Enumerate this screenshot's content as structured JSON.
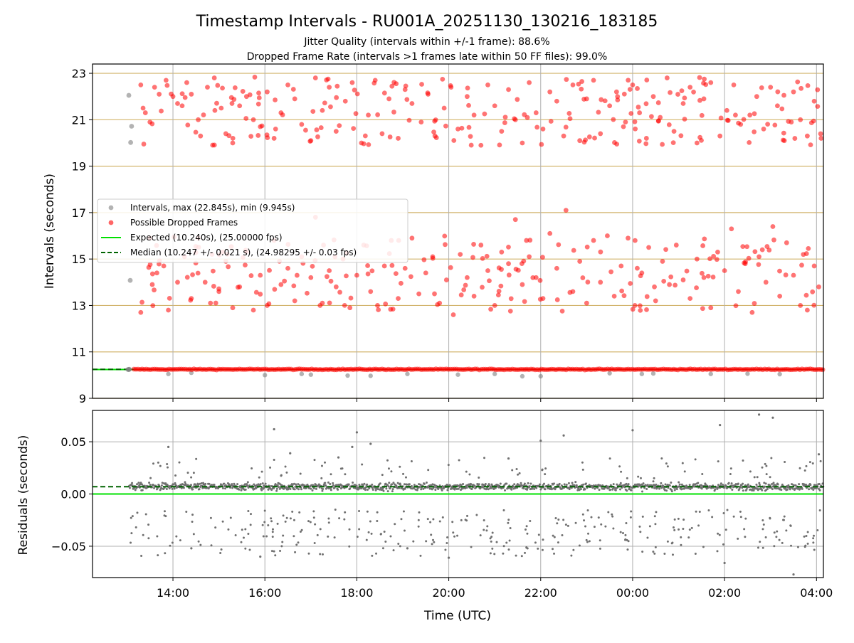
{
  "figure": {
    "title": "Timestamp Intervals - RU001A_20251130_130216_183185",
    "subtitle_line1": "Jitter Quality (intervals within +/-1 frame): 88.6%",
    "subtitle_line2": "Dropped Frame Rate (intervals >1 frames late within 50 FF files): 99.0%",
    "xlabel": "Time (UTC)"
  },
  "colors": {
    "intervals": "#808080",
    "dropped": "#ff0000",
    "expected": "#00e000",
    "median": "#006400",
    "hgrid_upper": "#d2b46c",
    "grid": "#b0b0b0",
    "residual_points": "#707070"
  },
  "chart_data": [
    {
      "type": "scatter",
      "panel": "intervals",
      "ylabel": "Intervals (seconds)",
      "x_range_hours": [
        12.25,
        28.15
      ],
      "ylim": [
        9,
        23.4
      ],
      "yticks": [
        9,
        11,
        13,
        15,
        17,
        19,
        21,
        23
      ],
      "ytick_labels": [
        "9",
        "11",
        "13",
        "15",
        "17",
        "19",
        "21",
        "23"
      ],
      "xticks_hours": [
        14,
        16,
        18,
        20,
        22,
        24,
        26,
        28
      ],
      "xtick_labels": [
        "14:00",
        "16:00",
        "18:00",
        "20:00",
        "22:00",
        "00:00",
        "02:00",
        "04:00"
      ],
      "grid": true,
      "legend_position": "center-left",
      "legend": [
        {
          "kind": "marker",
          "color_key": "intervals",
          "label": "Intervals, max (22.845s), min (9.945s)"
        },
        {
          "kind": "marker",
          "color_key": "dropped",
          "label": "Possible Dropped Frames"
        },
        {
          "kind": "line",
          "style": "solid",
          "color_key": "expected",
          "label": "Expected (10.240s), (25.00000 fps)"
        },
        {
          "kind": "line",
          "style": "dashed",
          "color_key": "median",
          "label": "Median (10.247 +/- 0.021 s), (24.98295 +/- 0.03 fps)"
        }
      ],
      "expected": 10.24,
      "median": 10.247,
      "data_start_hour": 13.04,
      "data_end_hour": 28.15,
      "interval_extremes": {
        "max": 22.845,
        "min": 9.945
      },
      "cluster_bands": [
        {
          "name": "baseline",
          "y_min": 10.2,
          "y_max": 10.3
        },
        {
          "name": "middle",
          "y_min": 12.6,
          "y_max": 17.1
        },
        {
          "name": "upper",
          "y_min": 19.8,
          "y_max": 22.85
        }
      ],
      "series_points": {
        "intervals_early": [
          [
            13.04,
            22.05
          ],
          [
            13.1,
            20.72
          ],
          [
            13.08,
            20.02
          ],
          [
            13.07,
            14.08
          ],
          [
            13.02,
            10.24
          ],
          [
            13.05,
            10.25
          ]
        ],
        "intervals_low_outliers": [
          [
            13.9,
            10.05
          ],
          [
            14.4,
            10.1
          ],
          [
            16.0,
            10.0
          ],
          [
            16.8,
            10.05
          ],
          [
            17.0,
            10.02
          ],
          [
            17.8,
            9.98
          ],
          [
            18.3,
            9.97
          ],
          [
            19.1,
            10.05
          ],
          [
            20.2,
            10.02
          ],
          [
            21.0,
            10.05
          ],
          [
            21.6,
            9.95
          ],
          [
            22.0,
            9.95
          ],
          [
            23.5,
            10.08
          ],
          [
            24.2,
            10.05
          ],
          [
            24.45,
            10.07
          ],
          [
            25.7,
            10.05
          ],
          [
            26.5,
            10.06
          ],
          [
            27.2,
            10.04
          ]
        ],
        "dropped_upper": [
          [
            13.3,
            22.5
          ],
          [
            13.35,
            21.5
          ],
          [
            13.4,
            21.3
          ],
          [
            13.5,
            20.9
          ],
          [
            13.6,
            22.4
          ],
          [
            13.7,
            22.1
          ],
          [
            13.85,
            22.7
          ],
          [
            14.0,
            22.0
          ],
          [
            14.1,
            21.7
          ],
          [
            14.2,
            21.6
          ],
          [
            14.3,
            22.6
          ],
          [
            14.4,
            22.1
          ],
          [
            14.55,
            21.0
          ],
          [
            14.6,
            20.3
          ],
          [
            14.75,
            22.4
          ],
          [
            14.9,
            22.8
          ],
          [
            15.05,
            21.5
          ],
          [
            15.15,
            20.4
          ],
          [
            15.3,
            20.0
          ],
          [
            15.45,
            21.6
          ],
          [
            15.6,
            22.0
          ],
          [
            15.75,
            21.0
          ],
          [
            15.9,
            20.7
          ],
          [
            16.05,
            22.2
          ],
          [
            16.2,
            20.2
          ],
          [
            16.35,
            21.3
          ],
          [
            16.5,
            22.5
          ],
          [
            16.65,
            21.9
          ],
          [
            16.8,
            20.8
          ],
          [
            17.0,
            20.1
          ],
          [
            17.1,
            22.8
          ],
          [
            17.25,
            21.4
          ],
          [
            17.4,
            22.4
          ],
          [
            17.55,
            20.5
          ],
          [
            17.75,
            21.8
          ],
          [
            17.9,
            22.6
          ],
          [
            18.1,
            20.0
          ],
          [
            18.25,
            21.2
          ],
          [
            18.4,
            22.7
          ],
          [
            18.55,
            20.4
          ],
          [
            18.7,
            21.9
          ],
          [
            18.9,
            20.2
          ],
          [
            19.05,
            22.3
          ],
          [
            19.2,
            21.7
          ],
          [
            19.4,
            20.9
          ],
          [
            19.55,
            22.1
          ],
          [
            19.7,
            20.3
          ],
          [
            19.9,
            21.5
          ],
          [
            20.05,
            22.4
          ],
          [
            20.2,
            20.6
          ],
          [
            20.4,
            22.0
          ],
          [
            20.55,
            21.2
          ],
          [
            20.7,
            19.9
          ],
          [
            20.85,
            22.5
          ],
          [
            21.0,
            21.6
          ],
          [
            21.15,
            20.5
          ],
          [
            21.3,
            22.3
          ],
          [
            21.45,
            21.0
          ],
          [
            21.6,
            20.0
          ],
          [
            21.75,
            22.6
          ],
          [
            21.9,
            21.3
          ],
          [
            22.05,
            20.6
          ],
          [
            22.2,
            22.2
          ],
          [
            22.35,
            21.8
          ],
          [
            22.5,
            20.3
          ],
          [
            22.7,
            22.5
          ],
          [
            22.85,
            20.1
          ],
          [
            23.0,
            21.9
          ],
          [
            23.15,
            22.7
          ],
          [
            23.3,
            20.4
          ],
          [
            23.5,
            21.6
          ],
          [
            23.65,
            22.2
          ],
          [
            23.8,
            20.7
          ],
          [
            24.0,
            22.5
          ],
          [
            24.15,
            21.3
          ],
          [
            24.3,
            20.2
          ],
          [
            24.45,
            22.0
          ],
          [
            24.6,
            21.1
          ],
          [
            24.75,
            22.8
          ],
          [
            24.9,
            20.5
          ],
          [
            25.1,
            21.7
          ],
          [
            25.25,
            22.4
          ],
          [
            25.4,
            20.0
          ],
          [
            25.55,
            21.9
          ],
          [
            25.7,
            22.6
          ],
          [
            25.9,
            20.3
          ],
          [
            26.05,
            21.4
          ],
          [
            26.2,
            22.5
          ],
          [
            26.35,
            20.8
          ],
          [
            26.55,
            21.2
          ],
          [
            26.7,
            22.0
          ],
          [
            26.85,
            20.6
          ],
          [
            27.0,
            22.4
          ],
          [
            27.15,
            21.6
          ],
          [
            27.3,
            20.1
          ],
          [
            27.5,
            22.2
          ],
          [
            27.65,
            21.0
          ],
          [
            27.8,
            20.3
          ],
          [
            27.95,
            21.8
          ],
          [
            28.1,
            20.2
          ]
        ],
        "dropped_middle": [
          [
            13.3,
            12.7
          ],
          [
            13.5,
            15.9
          ],
          [
            13.55,
            13.9
          ],
          [
            13.65,
            14.4
          ],
          [
            13.8,
            14.7
          ],
          [
            13.9,
            12.8
          ],
          [
            14.1,
            14.0
          ],
          [
            14.25,
            15.1
          ],
          [
            14.4,
            13.3
          ],
          [
            14.55,
            15.9
          ],
          [
            14.7,
            14.0
          ],
          [
            14.85,
            15.2
          ],
          [
            15.0,
            13.6
          ],
          [
            15.15,
            14.9
          ],
          [
            15.3,
            12.9
          ],
          [
            15.45,
            13.8
          ],
          [
            15.6,
            15.3
          ],
          [
            15.75,
            12.8
          ],
          [
            15.9,
            14.3
          ],
          [
            16.05,
            13.0
          ],
          [
            16.2,
            15.8
          ],
          [
            16.35,
            13.9
          ],
          [
            16.5,
            14.6
          ],
          [
            16.65,
            13.2
          ],
          [
            16.8,
            15.1
          ],
          [
            17.0,
            14.2
          ],
          [
            17.1,
            16.8
          ],
          [
            17.25,
            13.1
          ],
          [
            17.4,
            14.5
          ],
          [
            17.55,
            13.8
          ],
          [
            17.7,
            15.0
          ],
          [
            17.85,
            12.9
          ],
          [
            18.0,
            14.3
          ],
          [
            18.15,
            15.6
          ],
          [
            18.3,
            13.6
          ],
          [
            18.45,
            13.0
          ],
          [
            18.6,
            14.7
          ],
          [
            18.75,
            15.8
          ],
          [
            18.9,
            13.3
          ],
          [
            19.05,
            14.6
          ],
          [
            19.2,
            15.9
          ],
          [
            19.35,
            13.5
          ],
          [
            19.5,
            14.4
          ],
          [
            19.65,
            15.1
          ],
          [
            19.8,
            13.1
          ],
          [
            19.95,
            14.1
          ],
          [
            20.1,
            12.6
          ],
          [
            20.25,
            15.2
          ],
          [
            20.4,
            14.2
          ],
          [
            20.55,
            13.4
          ],
          [
            20.7,
            15.6
          ],
          [
            20.85,
            14.5
          ],
          [
            21.0,
            13.0
          ],
          [
            21.15,
            15.3
          ],
          [
            21.3,
            14.8
          ],
          [
            21.45,
            16.7
          ],
          [
            21.6,
            13.9
          ],
          [
            21.75,
            15.1
          ],
          [
            21.9,
            14.2
          ],
          [
            22.05,
            13.3
          ],
          [
            22.2,
            16.1
          ],
          [
            22.35,
            14.6
          ],
          [
            22.55,
            17.1
          ],
          [
            22.7,
            13.6
          ],
          [
            22.85,
            14.9
          ],
          [
            23.0,
            13.1
          ],
          [
            23.15,
            15.8
          ],
          [
            23.3,
            14.0
          ],
          [
            23.45,
            16.0
          ],
          [
            23.6,
            13.4
          ],
          [
            23.75,
            14.7
          ],
          [
            23.9,
            15.9
          ],
          [
            24.05,
            13.0
          ],
          [
            24.2,
            14.4
          ],
          [
            24.35,
            15.5
          ],
          [
            24.5,
            13.2
          ],
          [
            24.65,
            14.9
          ],
          [
            24.8,
            13.9
          ],
          [
            24.95,
            15.6
          ],
          [
            25.1,
            14.1
          ],
          [
            25.25,
            13.3
          ],
          [
            25.4,
            15.0
          ],
          [
            25.55,
            14.2
          ],
          [
            25.7,
            12.9
          ],
          [
            25.85,
            15.3
          ],
          [
            26.0,
            14.5
          ],
          [
            26.15,
            16.3
          ],
          [
            26.3,
            13.6
          ],
          [
            26.45,
            14.8
          ],
          [
            26.6,
            12.7
          ],
          [
            26.75,
            15.1
          ],
          [
            26.9,
            14.0
          ],
          [
            27.05,
            16.4
          ],
          [
            27.2,
            13.4
          ],
          [
            27.35,
            15.7
          ],
          [
            27.5,
            14.3
          ],
          [
            27.65,
            13.0
          ],
          [
            27.8,
            12.8
          ],
          [
            27.95,
            14.7
          ],
          [
            28.05,
            13.8
          ]
        ]
      }
    },
    {
      "type": "scatter",
      "panel": "residuals",
      "ylabel": "Residuals (seconds)",
      "x_range_hours": [
        12.25,
        28.15
      ],
      "ylim": [
        -0.08,
        0.08
      ],
      "yticks": [
        -0.05,
        0.0,
        0.05
      ],
      "ytick_labels": [
        "−0.05",
        "0.00",
        "0.05"
      ],
      "xticks_hours": [
        14,
        16,
        18,
        20,
        22,
        24,
        26,
        28
      ],
      "xtick_labels": [
        "14:00",
        "16:00",
        "18:00",
        "20:00",
        "22:00",
        "00:00",
        "02:00",
        "04:00"
      ],
      "grid": true,
      "expected_residual": 0.0,
      "median_residual": 0.007,
      "main_band": {
        "center": 0.007,
        "spread": 0.006
      },
      "lower_band": {
        "y_min": -0.06,
        "y_max": -0.015
      },
      "series_points": {
        "outliers": [
          [
            13.9,
            0.045
          ],
          [
            14.4,
            -0.052
          ],
          [
            15.9,
            -0.06
          ],
          [
            16.2,
            0.062
          ],
          [
            16.55,
            0.039
          ],
          [
            17.6,
            0.035
          ],
          [
            17.9,
            0.045
          ],
          [
            18.0,
            0.059
          ],
          [
            18.3,
            0.048
          ],
          [
            19.1,
            -0.052
          ],
          [
            20.0,
            -0.061
          ],
          [
            21.3,
            0.034
          ],
          [
            22.0,
            0.051
          ],
          [
            22.5,
            0.056
          ],
          [
            24.0,
            0.061
          ],
          [
            25.9,
            0.066
          ],
          [
            26.0,
            -0.066
          ],
          [
            26.75,
            0.076
          ],
          [
            27.05,
            0.073
          ],
          [
            27.5,
            -0.077
          ],
          [
            28.05,
            0.038
          ]
        ]
      }
    }
  ]
}
